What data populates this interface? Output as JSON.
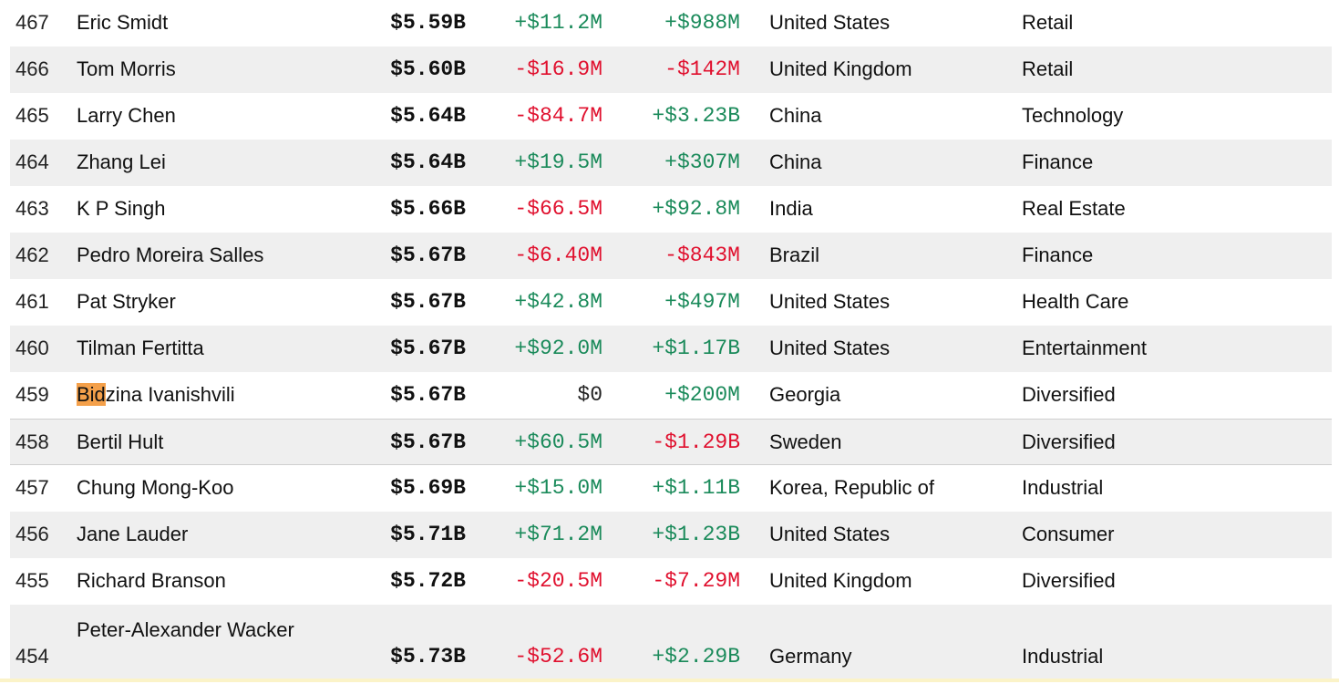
{
  "colors": {
    "positive": "#1a8a5a",
    "negative": "#e0102e",
    "highlight": "#f4a04a",
    "row_alt": "#efefef"
  },
  "search_highlight": "Bid",
  "rows": [
    {
      "rank": "467",
      "name": "Eric Smidt",
      "worth": "$5.59B",
      "last_change": "+$11.2M",
      "ytd_change": "+$988M",
      "country": "United States",
      "industry": "Retail",
      "lc": "pos",
      "yc": "pos"
    },
    {
      "rank": "466",
      "name": "Tom Morris",
      "worth": "$5.60B",
      "last_change": "-$16.9M",
      "ytd_change": "-$142M",
      "country": "United Kingdom",
      "industry": "Retail",
      "lc": "neg",
      "yc": "neg"
    },
    {
      "rank": "465",
      "name": "Larry Chen",
      "worth": "$5.64B",
      "last_change": "-$84.7M",
      "ytd_change": "+$3.23B",
      "country": "China",
      "industry": "Technology",
      "lc": "neg",
      "yc": "pos"
    },
    {
      "rank": "464",
      "name": "Zhang Lei",
      "worth": "$5.64B",
      "last_change": "+$19.5M",
      "ytd_change": "+$307M",
      "country": "China",
      "industry": "Finance",
      "lc": "pos",
      "yc": "pos"
    },
    {
      "rank": "463",
      "name": "K P Singh",
      "worth": "$5.66B",
      "last_change": "-$66.5M",
      "ytd_change": "+$92.8M",
      "country": "India",
      "industry": "Real Estate",
      "lc": "neg",
      "yc": "pos"
    },
    {
      "rank": "462",
      "name": "Pedro Moreira Salles",
      "worth": "$5.67B",
      "last_change": "-$6.40M",
      "ytd_change": "-$843M",
      "country": "Brazil",
      "industry": "Finance",
      "lc": "neg",
      "yc": "neg"
    },
    {
      "rank": "461",
      "name": "Pat Stryker",
      "worth": "$5.67B",
      "last_change": "+$42.8M",
      "ytd_change": "+$497M",
      "country": "United States",
      "industry": "Health Care",
      "lc": "pos",
      "yc": "pos"
    },
    {
      "rank": "460",
      "name": "Tilman Fertitta",
      "worth": "$5.67B",
      "last_change": "+$92.0M",
      "ytd_change": "+$1.17B",
      "country": "United States",
      "industry": "Entertainment",
      "lc": "pos",
      "yc": "pos"
    },
    {
      "rank": "459",
      "name_highlight": "Bid",
      "name_rest": "zina Ivanishvili",
      "worth": "$5.67B",
      "last_change": "$0",
      "ytd_change": "+$200M",
      "country": "Georgia",
      "industry": "Diversified",
      "lc": "neu",
      "yc": "pos"
    },
    {
      "rank": "458",
      "name": "Bertil Hult",
      "worth": "$5.67B",
      "last_change": "+$60.5M",
      "ytd_change": "-$1.29B",
      "country": "Sweden",
      "industry": "Diversified",
      "lc": "pos",
      "yc": "neg"
    },
    {
      "rank": "457",
      "name": "Chung Mong-Koo",
      "worth": "$5.69B",
      "last_change": "+$15.0M",
      "ytd_change": "+$1.11B",
      "country": "Korea, Republic of",
      "industry": "Industrial",
      "lc": "pos",
      "yc": "pos"
    },
    {
      "rank": "456",
      "name": "Jane Lauder",
      "worth": "$5.71B",
      "last_change": "+$71.2M",
      "ytd_change": "+$1.23B",
      "country": "United States",
      "industry": "Consumer",
      "lc": "pos",
      "yc": "pos"
    },
    {
      "rank": "455",
      "name": "Richard Branson",
      "worth": "$5.72B",
      "last_change": "-$20.5M",
      "ytd_change": "-$7.29M",
      "country": "United Kingdom",
      "industry": "Diversified",
      "lc": "neg",
      "yc": "neg"
    },
    {
      "rank": "454",
      "name": "Peter-Alexander Wacker",
      "worth": "$5.73B",
      "last_change": "-$52.6M",
      "ytd_change": "+$2.29B",
      "country": "Germany",
      "industry": "Industrial",
      "lc": "neg",
      "yc": "pos"
    }
  ]
}
